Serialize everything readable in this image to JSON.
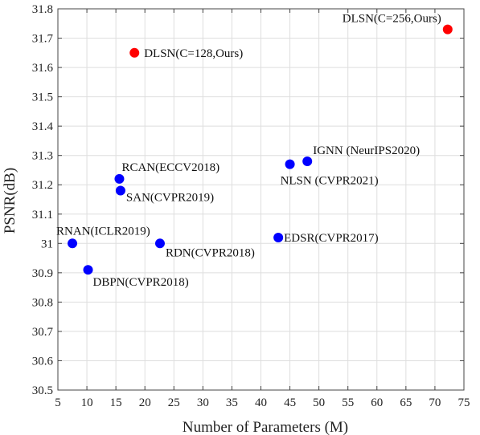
{
  "chart_data": {
    "type": "scatter",
    "title": "",
    "xlabel": "Number of Parameters (M)",
    "ylabel": "PSNR(dB)",
    "xlim": [
      5,
      75
    ],
    "ylim": [
      30.5,
      31.8
    ],
    "xticks": [
      5,
      10,
      15,
      20,
      25,
      30,
      35,
      40,
      45,
      50,
      55,
      60,
      65,
      70,
      75
    ],
    "yticks": [
      30.5,
      30.6,
      30.7,
      30.8,
      30.9,
      31,
      31.1,
      31.2,
      31.3,
      31.4,
      31.5,
      31.6,
      31.7,
      31.8
    ],
    "xtick_labels": [
      "5",
      "10",
      "15",
      "20",
      "25",
      "30",
      "35",
      "40",
      "45",
      "50",
      "55",
      "60",
      "65",
      "70",
      "75"
    ],
    "ytick_labels": [
      "30.5",
      "30.6",
      "30.7",
      "30.8",
      "30.9",
      "31",
      "31.1",
      "31.2",
      "31.3",
      "31.4",
      "31.5",
      "31.6",
      "31.7",
      "31.8"
    ],
    "grid": true,
    "colors": {
      "ours": "#ff0000",
      "others": "#0000ff"
    },
    "points": [
      {
        "label": "DLSN(C=256,Ours)",
        "x": 72.2,
        "y": 31.73,
        "group": "ours",
        "anchor": "end",
        "dx": -8,
        "dy": -9
      },
      {
        "label": "DLSN(C=128,Ours)",
        "x": 18.2,
        "y": 31.65,
        "group": "ours",
        "anchor": "start",
        "dx": 12,
        "dy": 5
      },
      {
        "label": "IGNN (NeurIPS2020)",
        "x": 48.0,
        "y": 31.28,
        "group": "others",
        "anchor": "start",
        "dx": 7,
        "dy": -9
      },
      {
        "label": "NLSN (CVPR2021)",
        "x": 45.0,
        "y": 31.27,
        "group": "others",
        "anchor": "start",
        "dx": -12,
        "dy": 25
      },
      {
        "label": "RCAN(ECCV2018)",
        "x": 15.6,
        "y": 31.22,
        "group": "others",
        "anchor": "start",
        "dx": 3,
        "dy": -10
      },
      {
        "label": "SAN(CVPR2019)",
        "x": 15.8,
        "y": 31.18,
        "group": "others",
        "anchor": "start",
        "dx": 7,
        "dy": 13
      },
      {
        "label": "RNAN(ICLR2019)",
        "x": 7.5,
        "y": 31.0,
        "group": "others",
        "anchor": "start",
        "dx": -20,
        "dy": -11
      },
      {
        "label": "RDN(CVPR2018)",
        "x": 22.6,
        "y": 31.0,
        "group": "others",
        "anchor": "start",
        "dx": 7,
        "dy": 16
      },
      {
        "label": "EDSR(CVPR2017)",
        "x": 43.0,
        "y": 31.02,
        "group": "others",
        "anchor": "start",
        "dx": 7,
        "dy": 5
      },
      {
        "label": "DBPN(CVPR2018)",
        "x": 10.2,
        "y": 30.91,
        "group": "others",
        "anchor": "start",
        "dx": 6,
        "dy": 20
      }
    ]
  }
}
